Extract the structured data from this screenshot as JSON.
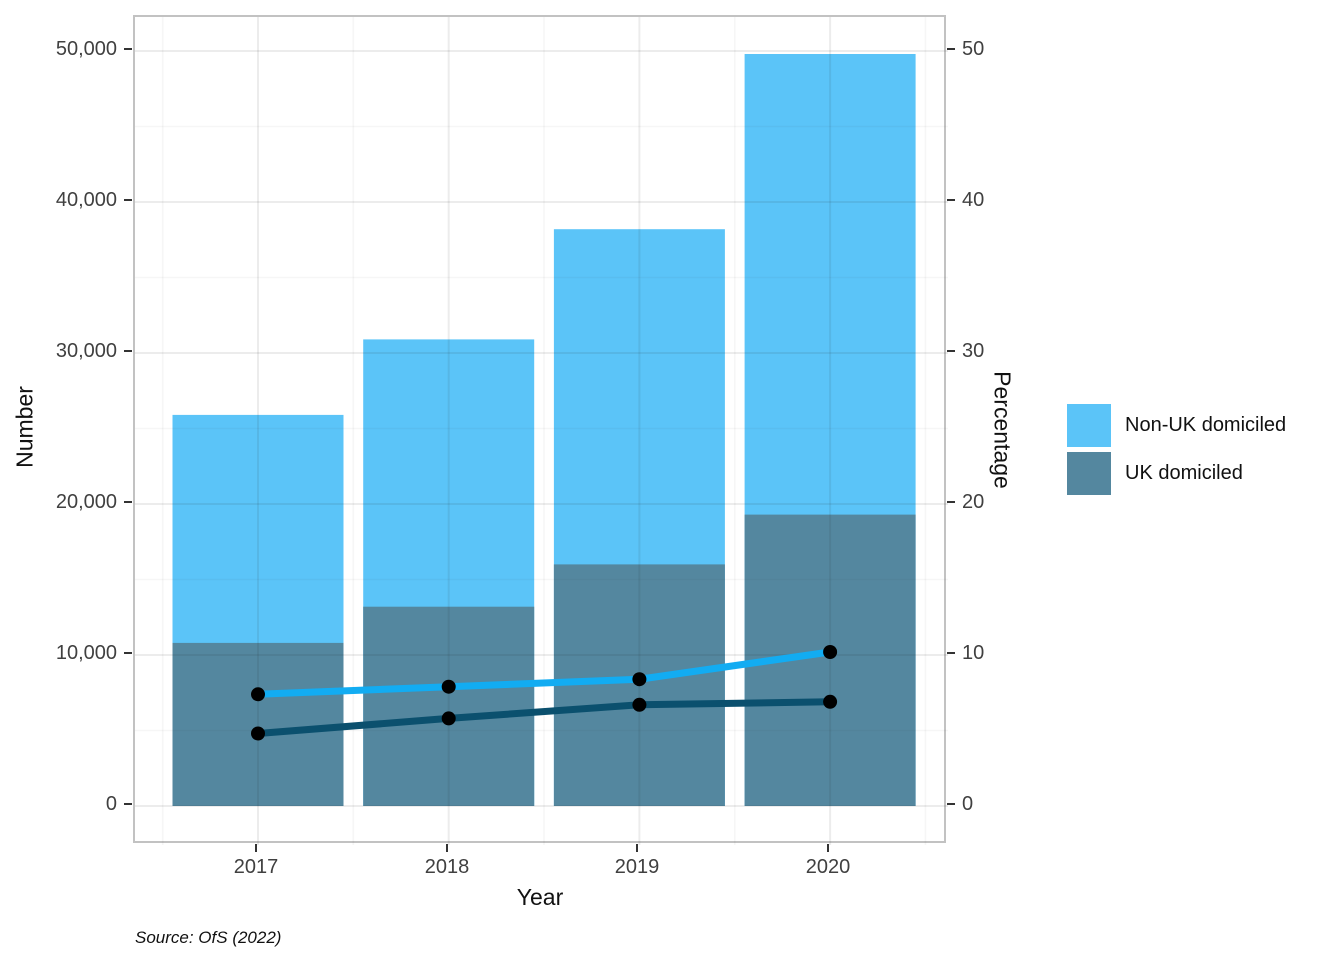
{
  "figure": {
    "source": "Source: OfS (2022)"
  },
  "colors": {
    "bar_non_uk": "#5BC4F8",
    "bar_uk": "#54879F",
    "line_non_uk": "#12ACF2",
    "line_uk": "#0B506E",
    "marker": "#000000",
    "grid_major": "rgba(40,40,40,0.085)",
    "grid_minor": "rgba(40,40,40,0.045)",
    "panel_border": "#c2c2c2",
    "tick": "#333333",
    "tick_label": "#404040"
  },
  "chart_data": {
    "type": "bar",
    "subtype": "dual-axis bars with percentage lines",
    "categories": [
      "2017",
      "2018",
      "2019",
      "2020"
    ],
    "series": [
      {
        "name": "Non-UK domiciled",
        "role": "bar-total-height",
        "axis": "left",
        "values": [
          25900,
          30900,
          38200,
          49800
        ]
      },
      {
        "name": "UK domiciled",
        "role": "bar",
        "axis": "left",
        "values": [
          10800,
          13200,
          16000,
          19300
        ]
      },
      {
        "name": "Non-UK domiciled percentage",
        "role": "line",
        "axis": "right",
        "values": [
          7.4,
          7.9,
          8.4,
          10.2
        ]
      },
      {
        "name": "UK domiciled percentage",
        "role": "line",
        "axis": "right",
        "values": [
          4.8,
          5.8,
          6.7,
          6.9
        ]
      }
    ],
    "xlabel": "Year",
    "left_axis": {
      "label": "Number",
      "lim": [
        0,
        50000
      ],
      "tick_values": [
        0,
        10000,
        20000,
        30000,
        40000,
        50000
      ],
      "tick_labels": [
        "0",
        "10,000",
        "20,000",
        "30,000",
        "40,000",
        "50,000"
      ],
      "minor_step": 5000
    },
    "right_axis": {
      "label": "Percentage",
      "lim": [
        0,
        50
      ],
      "tick_values": [
        0,
        10,
        20,
        30,
        40,
        50
      ],
      "tick_labels": [
        "0",
        "10",
        "20",
        "30",
        "40",
        "50"
      ],
      "minor_step": 5
    },
    "grid": true,
    "legend_position": "right",
    "legend": [
      {
        "label": "Non-UK domiciled",
        "color": "#5BC4F8"
      },
      {
        "label": "UK domiciled",
        "color": "#54879F"
      }
    ]
  }
}
